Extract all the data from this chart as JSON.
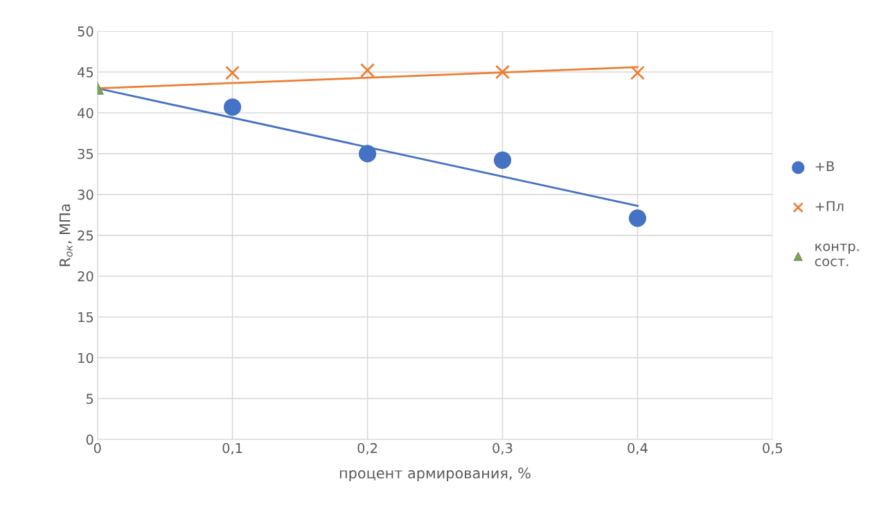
{
  "chart_data": {
    "type": "scatter",
    "xlabel": "процент армирования, %",
    "ylabel": "R$_{ок}$, МПа",
    "xlim": [
      0,
      0.5
    ],
    "xticks": [
      {
        "value": 0,
        "label": "0"
      },
      {
        "value": 0.1,
        "label": "0,1"
      },
      {
        "value": 0.2,
        "label": "0,2"
      },
      {
        "value": 0.3,
        "label": "0,3"
      },
      {
        "value": 0.4,
        "label": "0,4"
      },
      {
        "value": 0.5,
        "label": "0,5"
      }
    ],
    "ylim": [
      0,
      50
    ],
    "yticks": [
      0,
      5,
      10,
      15,
      20,
      25,
      30,
      35,
      40,
      45,
      50
    ],
    "grid": true,
    "legend": "right",
    "series": [
      {
        "type": "line",
        "color": "#4472c4",
        "x": [
          0,
          0.4
        ],
        "values": [
          43.0,
          28.6
        ],
        "marker": "none",
        "line_style": "solid"
      },
      {
        "type": "line",
        "color": "#ed7d31",
        "x": [
          0,
          0.4
        ],
        "values": [
          43.0,
          45.6
        ],
        "marker": "none",
        "line_style": "solid"
      },
      {
        "name": "+В",
        "color": "#4472c4",
        "x": [
          0.1,
          0.2,
          0.3,
          0.4
        ],
        "values": [
          40.7,
          35.0,
          34.2,
          27.1
        ],
        "marker": "circle"
      },
      {
        "name": "+Пл",
        "color": "#ed7d31",
        "x": [
          0.1,
          0.2,
          0.3,
          0.4
        ],
        "values": [
          44.9,
          45.2,
          45.0,
          44.9
        ],
        "marker": "cross"
      },
      {
        "name": "контр. сост.",
        "color": "#70ad47",
        "x": [
          0
        ],
        "values": [
          43.0
        ],
        "marker": "triangle"
      }
    ]
  }
}
